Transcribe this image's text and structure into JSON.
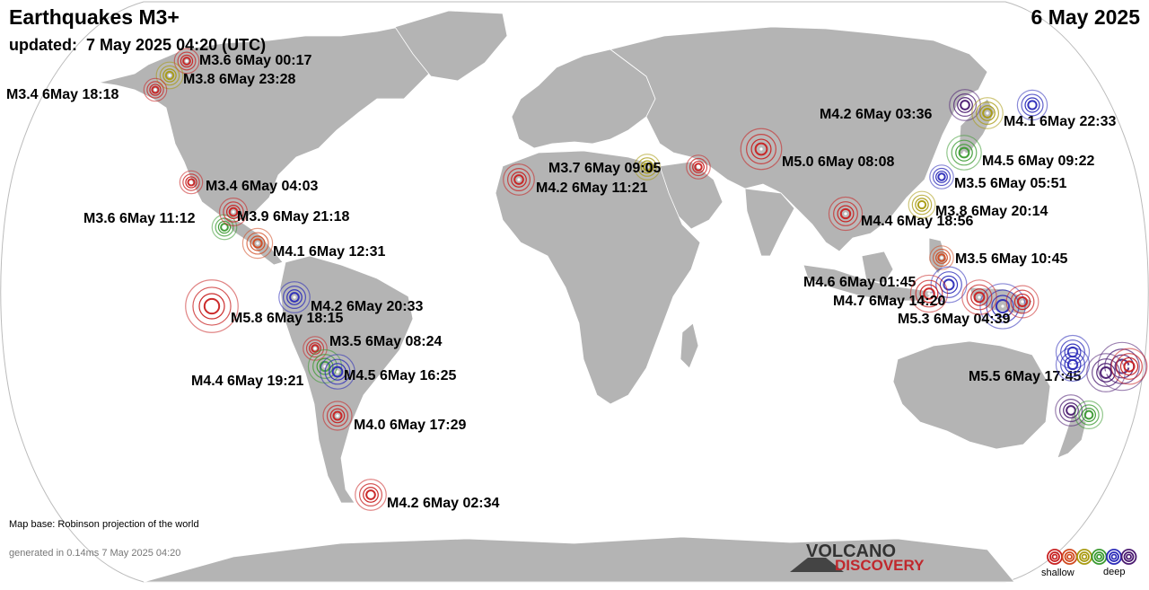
{
  "header": {
    "title": "Earthquakes M3+",
    "updated": "updated:  7 May 2025 04:20 (UTC)",
    "date": "6 May 2025"
  },
  "footer": {
    "map_base": "Map base: Robinson projection of the world",
    "generated": "generated in 0.14ms  7 May 2025 04:20"
  },
  "logo": {
    "top": "VOLCANO",
    "bottom": "DISCOVERY"
  },
  "legend": {
    "shallow_label": "shallow",
    "deep_label": "deep",
    "depth_colors": [
      "#c82020",
      "#d04a20",
      "#a89a10",
      "#3a9a30",
      "#2a2ab8",
      "#4a1a70"
    ]
  },
  "colors": {
    "ocean": "#ffffff",
    "land": "#b4b4b4",
    "border": "#ffffff"
  },
  "quakes": [
    {
      "label": "M3.6  6May 00:17",
      "mag": 3.6,
      "depth": "shallow",
      "color": "#c82020"
    },
    {
      "label": "M3.8  6May 23:28",
      "mag": 3.8,
      "depth": "intermediate",
      "color": "#a89a10"
    },
    {
      "label": "M3.4  6May 18:18",
      "mag": 3.4,
      "depth": "shallow",
      "color": "#c82020"
    },
    {
      "label": "M3.4  6May 04:03",
      "mag": 3.4,
      "depth": "shallow",
      "color": "#c82020"
    },
    {
      "label": "M3.6  6May 11:12",
      "mag": 3.6,
      "depth": "intermediate",
      "color": "#3a9a30"
    },
    {
      "label": "M3.9  6May 21:18",
      "mag": 3.9,
      "depth": "shallow",
      "color": "#c82020"
    },
    {
      "label": "M4.1  6May 12:31",
      "mag": 4.1,
      "depth": "shallow",
      "color": "#d04a20"
    },
    {
      "label": "M4.2  6May 20:33",
      "mag": 4.2,
      "depth": "deep",
      "color": "#2a2ab8"
    },
    {
      "label": "M5.8  6May 18:15",
      "mag": 5.8,
      "depth": "shallow",
      "color": "#c82020"
    },
    {
      "label": "M3.5  6May 08:24",
      "mag": 3.5,
      "depth": "shallow",
      "color": "#c82020"
    },
    {
      "label": "M4.4  6May 19:21",
      "mag": 4.4,
      "depth": "intermediate",
      "color": "#3a9a30"
    },
    {
      "label": "M4.5  6May 16:25",
      "mag": 4.5,
      "depth": "deep",
      "color": "#2a2ab8"
    },
    {
      "label": "M4.0  6May 17:29",
      "mag": 4.0,
      "depth": "shallow",
      "color": "#c82020"
    },
    {
      "label": "M4.2  6May 02:34",
      "mag": 4.2,
      "depth": "shallow",
      "color": "#c82020"
    },
    {
      "label": "M3.7  6May 09:05",
      "mag": 3.7,
      "depth": "intermediate",
      "color": "#a89a10"
    },
    {
      "label": "M4.2  6May 11:21",
      "mag": 4.2,
      "depth": "shallow",
      "color": "#c82020"
    },
    {
      "label": "",
      "mag": 3.5,
      "depth": "shallow",
      "color": "#c82020"
    },
    {
      "label": "M5.0  6May 08:08",
      "mag": 5.0,
      "depth": "shallow",
      "color": "#c82020"
    },
    {
      "label": "M4.4  6May 18:56",
      "mag": 4.4,
      "depth": "shallow",
      "color": "#c82020"
    },
    {
      "label": "M4.2  6May 03:36",
      "mag": 4.2,
      "depth": "very deep",
      "color": "#4a1a70"
    },
    {
      "label": "M4.1  6May 22:33",
      "mag": 4.1,
      "depth": "deep",
      "color": "#2a2ab8"
    },
    {
      "label": "",
      "mag": 4.2,
      "depth": "intermediate",
      "color": "#a89a10"
    },
    {
      "label": "M4.5  6May 09:22",
      "mag": 4.5,
      "depth": "intermediate",
      "color": "#3a9a30"
    },
    {
      "label": "M3.5  6May 05:51",
      "mag": 3.5,
      "depth": "deep",
      "color": "#2a2ab8"
    },
    {
      "label": "M3.8  6May 20:14",
      "mag": 3.8,
      "depth": "intermediate",
      "color": "#a89a10"
    },
    {
      "label": "M3.5  6May 10:45",
      "mag": 3.5,
      "depth": "shallow",
      "color": "#d04a20"
    },
    {
      "label": "M4.6  6May 01:45",
      "mag": 4.6,
      "depth": "deep",
      "color": "#2a2ab8"
    },
    {
      "label": "M4.7  6May 14:20",
      "mag": 4.7,
      "depth": "shallow",
      "color": "#c82020"
    },
    {
      "label": "M5.3  6May 04:39",
      "mag": 5.3,
      "depth": "deep",
      "color": "#2a2ab8"
    },
    {
      "label": "",
      "mag": 4.5,
      "depth": "shallow",
      "color": "#c82020"
    },
    {
      "label": "",
      "mag": 4.3,
      "depth": "shallow",
      "color": "#c82020"
    },
    {
      "label": "M5.5  6May 17:45",
      "mag": 5.5,
      "depth": "very deep",
      "color": "#4a1a70"
    },
    {
      "label": "",
      "mag": 4.4,
      "depth": "deep",
      "color": "#2a2ab8"
    },
    {
      "label": "",
      "mag": 4.4,
      "depth": "deep",
      "color": "#2a2ab8"
    },
    {
      "label": "",
      "mag": 4.8,
      "depth": "very deep",
      "color": "#4a1a70"
    },
    {
      "label": "",
      "mag": 4.6,
      "depth": "shallow",
      "color": "#c82020"
    },
    {
      "label": "",
      "mag": 4.2,
      "depth": "very deep",
      "color": "#4a1a70"
    },
    {
      "label": "",
      "mag": 3.9,
      "depth": "intermediate",
      "color": "#3a9a30"
    }
  ]
}
